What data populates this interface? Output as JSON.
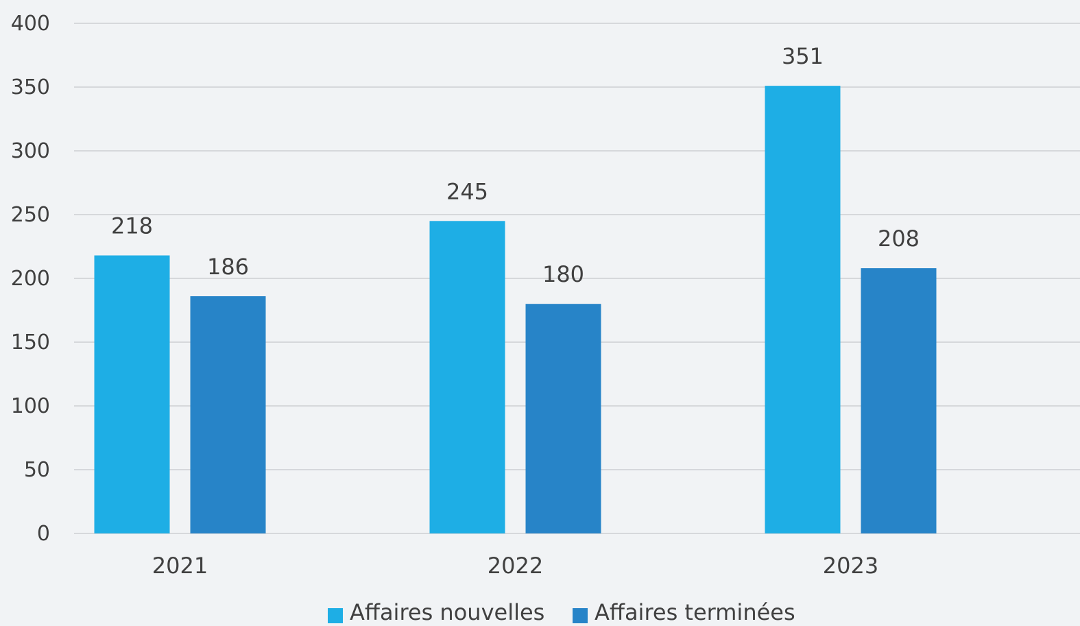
{
  "chart_data": {
    "type": "bar",
    "title": "",
    "xlabel": "",
    "ylabel": "",
    "categories": [
      "2021",
      "2022",
      "2023"
    ],
    "series": [
      {
        "name": "Affaires nouvelles",
        "values": [
          218,
          245,
          351
        ],
        "color": "#1eaee5"
      },
      {
        "name": "Affaires terminées",
        "values": [
          186,
          180,
          208
        ],
        "color": "#2784c8"
      }
    ],
    "ylim": [
      0,
      400
    ],
    "yticks": [
      0,
      50,
      100,
      150,
      200,
      250,
      300,
      350,
      400
    ],
    "grid": true,
    "legend_position": "bottom"
  }
}
